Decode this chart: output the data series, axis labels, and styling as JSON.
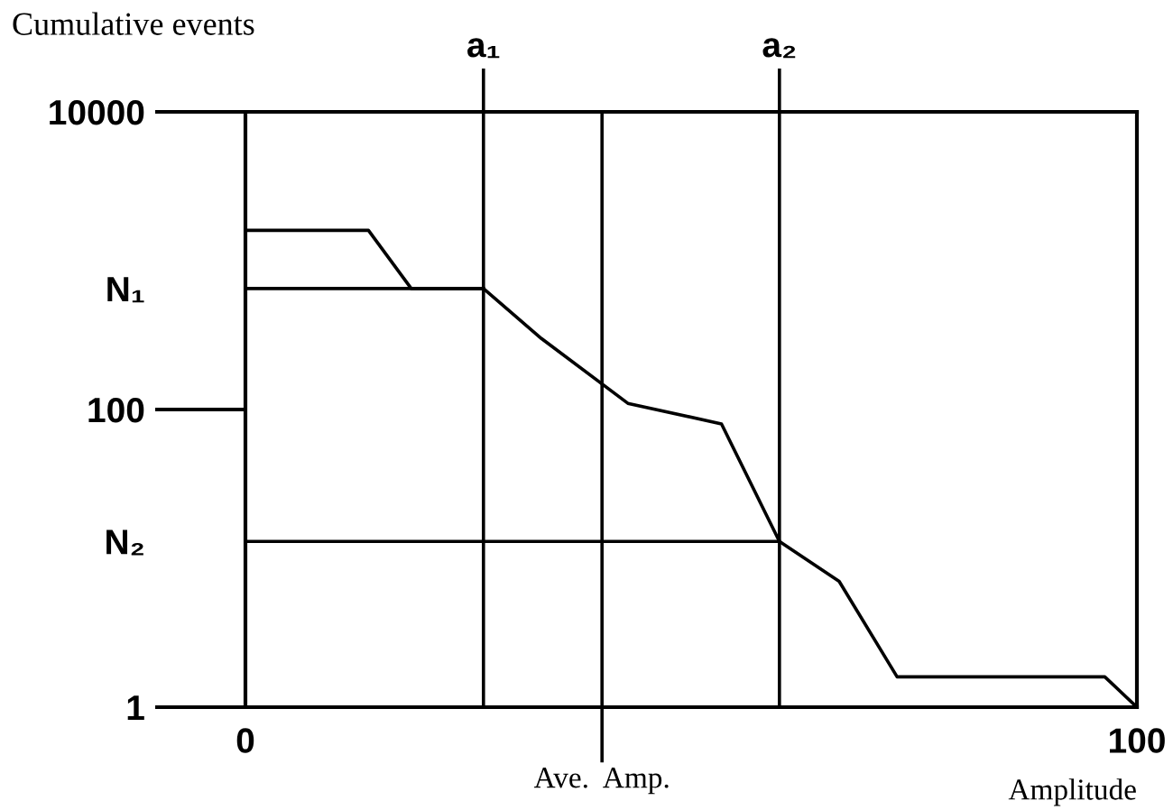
{
  "chart_data": {
    "type": "line",
    "xlabel": "Amplitude",
    "ylabel": "Cumulative events",
    "series": [
      {
        "color": "#000000",
        "x": [
          0,
          13.8,
          18.6,
          26.7,
          33.2,
          42.9,
          53.4,
          59.9,
          66.6,
          73.1,
          96.4,
          100
        ],
        "values": [
          1600,
          1600,
          650,
          650,
          300,
          110,
          80,
          13,
          7,
          1.6,
          1.6,
          1
        ]
      },
      {
        "color": "#000000",
        "x": [
          0,
          26.7
        ],
        "values": [
          650,
          650
        ]
      },
      {
        "color": "#000000",
        "x": [
          0,
          59.9
        ],
        "values": [
          13,
          13
        ]
      }
    ],
    "ref_lines": [
      {
        "axis": "x",
        "value": 26.7,
        "label": "a₁",
        "color": "#000000"
      },
      {
        "axis": "x",
        "value": 40,
        "label": "Ave.  Amp.",
        "color": "#000000"
      },
      {
        "axis": "x",
        "value": 59.9,
        "label": "a₂",
        "color": "#000000"
      }
    ],
    "log": "y",
    "xlim": [
      0,
      100
    ],
    "ylim": [
      1,
      10000
    ],
    "xticks": [
      0,
      100
    ],
    "yticks": [
      1,
      {
        "value": 13,
        "label": "N₂"
      },
      100,
      {
        "value": 650,
        "label": "N₁"
      },
      10000
    ],
    "grid": false,
    "legend": false,
    "marker": "none",
    "line_style": "solid"
  }
}
